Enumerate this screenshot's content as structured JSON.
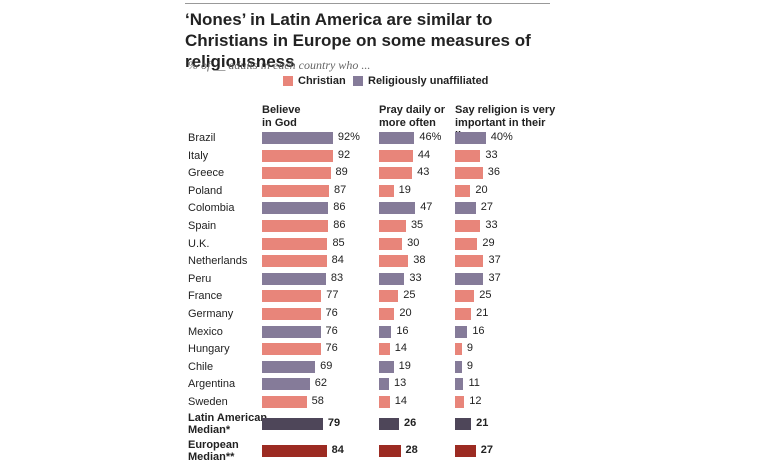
{
  "chart_data": {
    "type": "bar",
    "orientation": "horizontal",
    "title": "‘Nones’ in Latin America are similar to Christians in Europe on some measures of religiousness",
    "subtitle": "% of __ adults in each country who ...",
    "legend": [
      {
        "name": "Christian",
        "color": "#e8857a"
      },
      {
        "name": "Religiously unaffiliated",
        "color": "#857b99"
      }
    ],
    "categories": [
      "Brazil",
      "Italy",
      "Greece",
      "Poland",
      "Colombia",
      "Spain",
      "U.K.",
      "Netherlands",
      "Peru",
      "France",
      "Germany",
      "Mexico",
      "Hungary",
      "Chile",
      "Argentina",
      "Sweden",
      "Latin American\nMedian*",
      "European\nMedian**"
    ],
    "bar_colors": [
      "#857b99",
      "#e8857a",
      "#e8857a",
      "#e8857a",
      "#857b99",
      "#e8857a",
      "#e8857a",
      "#e8857a",
      "#857b99",
      "#e8857a",
      "#e8857a",
      "#857b99",
      "#e8857a",
      "#857b99",
      "#857b99",
      "#e8857a",
      "#4e4659",
      "#9c2b22"
    ],
    "series": [
      {
        "name": "Believe\nin God",
        "values": [
          92,
          92,
          89,
          87,
          86,
          86,
          85,
          84,
          83,
          77,
          76,
          76,
          76,
          69,
          62,
          58,
          79,
          84
        ],
        "value_labels": [
          "92%",
          "92",
          "89",
          "87",
          "86",
          "86",
          "85",
          "84",
          "83",
          "77",
          "76",
          "76",
          "76",
          "69",
          "62",
          "58",
          "79",
          "84"
        ]
      },
      {
        "name": "Pray daily or\nmore often",
        "values": [
          46,
          44,
          43,
          19,
          47,
          35,
          30,
          38,
          33,
          25,
          20,
          16,
          14,
          19,
          13,
          14,
          26,
          28
        ],
        "value_labels": [
          "46%",
          "44",
          "43",
          "19",
          "47",
          "35",
          "30",
          "38",
          "33",
          "25",
          "20",
          "16",
          "14",
          "19",
          "13",
          "14",
          "26",
          "28"
        ]
      },
      {
        "name": "Say religion is very\nimportant in their\nlives",
        "values": [
          40,
          33,
          36,
          20,
          27,
          33,
          29,
          37,
          37,
          25,
          21,
          16,
          9,
          9,
          11,
          12,
          21,
          27
        ],
        "value_labels": [
          "40%",
          "33",
          "36",
          "20",
          "27",
          "33",
          "29",
          "37",
          "37",
          "25",
          "21",
          "16",
          "9",
          "9",
          "11",
          "12",
          "21",
          "27"
        ]
      }
    ]
  }
}
